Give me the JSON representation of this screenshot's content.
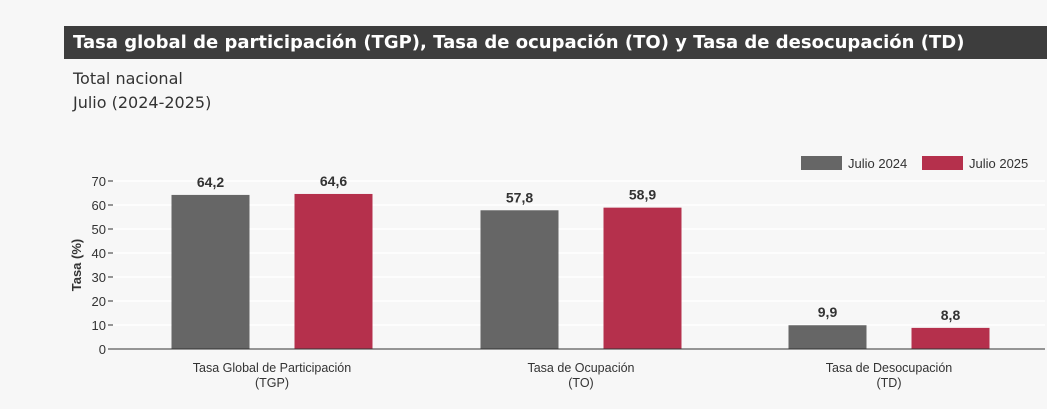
{
  "header": {
    "title": "Tasa global de participación (TGP), Tasa de ocupación (TO) y Tasa de desocupación (TD)",
    "subtitle_1": "Total nacional",
    "subtitle_2": "Julio (2024-2025)"
  },
  "chart_data": {
    "type": "bar",
    "title": "Tasa global de participación (TGP), Tasa de ocupación (TO) y Tasa de desocupación (TD)",
    "xlabel": "",
    "ylabel": "Tasa (%)",
    "ylim": [
      0,
      70
    ],
    "yticks": [
      0,
      10,
      20,
      30,
      40,
      50,
      60,
      70
    ],
    "grid": true,
    "legend_position": "top-right",
    "categories": [
      [
        "Tasa Global de Participación",
        "(TGP)"
      ],
      [
        "Tasa de Ocupación",
        "(TO)"
      ],
      [
        "Tasa de Desocupación",
        "(TD)"
      ]
    ],
    "series": [
      {
        "name": "Julio 2024",
        "color": "#666666",
        "values": [
          64.2,
          57.8,
          9.9
        ],
        "labels": [
          "64,2",
          "57,8",
          "9,9"
        ]
      },
      {
        "name": "Julio 2025",
        "color": "#b5304c",
        "values": [
          64.6,
          58.9,
          8.8
        ],
        "labels": [
          "64,6",
          "58,9",
          "8,8"
        ]
      }
    ]
  }
}
